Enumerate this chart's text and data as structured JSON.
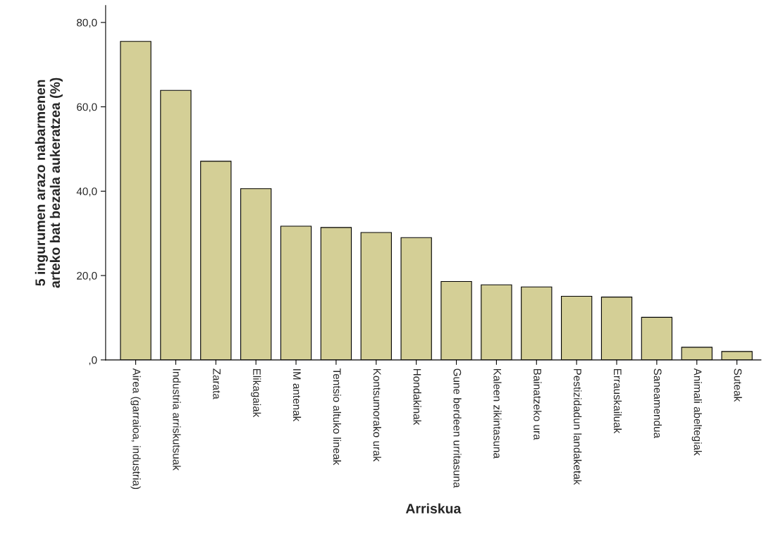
{
  "chart_data": {
    "type": "bar",
    "xlabel": "Arriskua",
    "ylabel": "5 ingurumen arazo nabarmenen\narteko bat bezala aukeratzea (%)",
    "categories": [
      "Airea (garraioa, industria)",
      "Industria arriskutsuak",
      "Zarata",
      "Elikagaiak",
      "IM antenak",
      "Tentsio altuko lineak",
      "Kontsumorako urak",
      "Hondakinak",
      "Gune berdeen urritasuna",
      "Kaleen zikintasuna",
      "Bainatzeko ura",
      "Pestizidadun landaketak",
      "Errauskailuak",
      "Saneamendua",
      "Animali abeltegiak",
      "Suteak"
    ],
    "values": [
      75.5,
      63.9,
      47.1,
      40.6,
      31.7,
      31.4,
      30.2,
      29.0,
      18.6,
      17.8,
      17.3,
      15.1,
      14.9,
      10.1,
      3.0,
      2.0
    ],
    "color": "#d4cf96",
    "ylim": [
      0,
      84
    ],
    "yticks": [
      {
        "value": 0,
        "label": ",0"
      },
      {
        "value": 20,
        "label": "20,0"
      },
      {
        "value": 40,
        "label": "40,0"
      },
      {
        "value": 60,
        "label": "60,0"
      },
      {
        "value": 80,
        "label": "80,0"
      }
    ],
    "grid": false,
    "legend": false
  }
}
